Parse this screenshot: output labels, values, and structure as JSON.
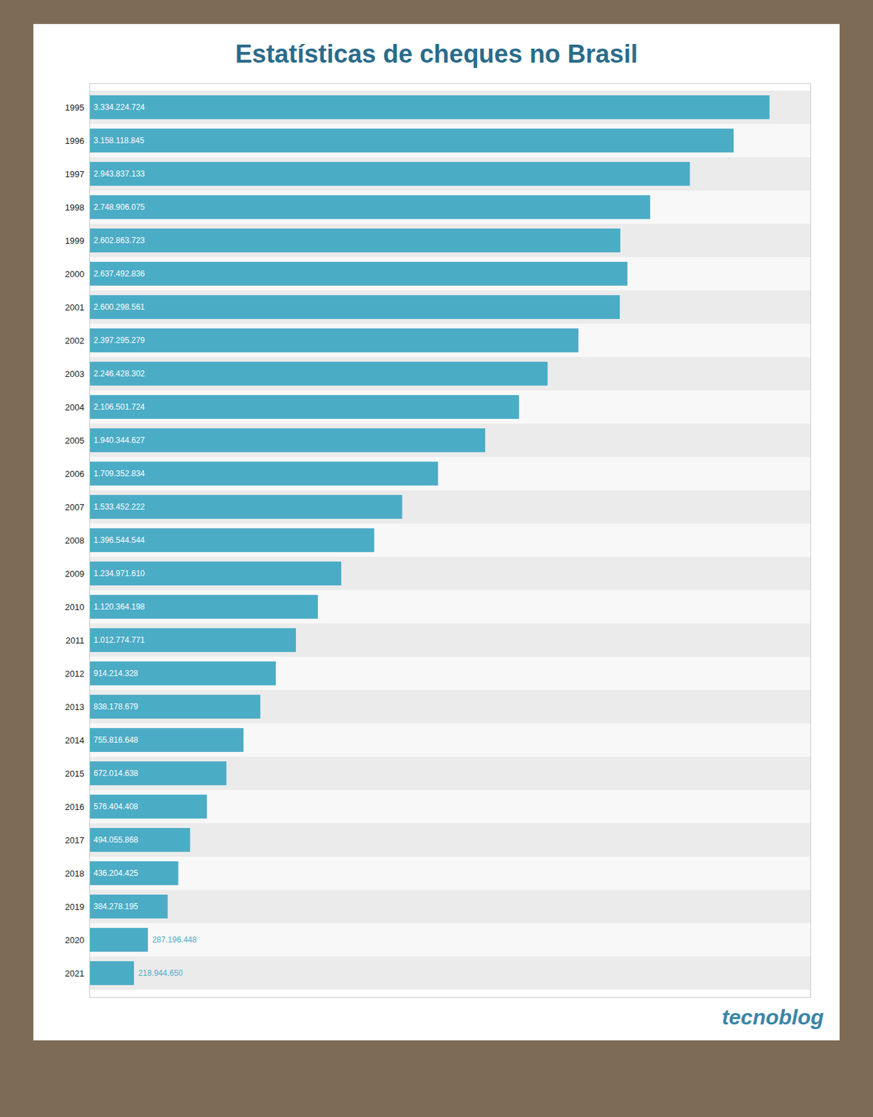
{
  "chart_data": {
    "type": "bar",
    "orientation": "horizontal",
    "title": "Estatísticas de cheques no Brasil",
    "categories": [
      "1995",
      "1996",
      "1997",
      "1998",
      "1999",
      "2000",
      "2001",
      "2002",
      "2003",
      "2004",
      "2005",
      "2006",
      "2007",
      "2008",
      "2009",
      "2010",
      "2011",
      "2012",
      "2013",
      "2014",
      "2015",
      "2016",
      "2017",
      "2018",
      "2019",
      "2020",
      "2021"
    ],
    "values": [
      3334224724,
      3158118845,
      2943837133,
      2748906075,
      2602863723,
      2637492836,
      2600298561,
      2397295279,
      2246428302,
      2106501724,
      1940344627,
      1709352834,
      1533452222,
      1396544544,
      1234971610,
      1120364198,
      1012774771,
      914214328,
      838178679,
      755816648,
      672014638,
      576404408,
      494055868,
      436204425,
      384278195,
      287196448,
      218944650
    ],
    "value_labels": [
      "3.334.224.724",
      "3.158.118.845",
      "2.943.837.133",
      "2.748.906.075",
      "2.602.863.723",
      "2.637.492.836",
      "2.600.298.561",
      "2.397.295.279",
      "2.246.428.302",
      "2.106.501.724",
      "1.940.344.627",
      "1.709.352.834",
      "1.533.452.222",
      "1.396.544.544",
      "1.234.971.610",
      "1.120.364.198",
      "1.012.774.771",
      "914.214.328",
      "838.178.679",
      "755.816.648",
      "672.014.638",
      "576.404.408",
      "494.055.868",
      "436.204.425",
      "384.278.195",
      "287.196.448",
      "218.944.650"
    ],
    "color": "#4bacc6",
    "xlim": [
      0,
      3534278207.44
    ],
    "data_labels": true,
    "tick_labels": "y",
    "grid": false,
    "annotations": [
      "tecnoblog"
    ]
  }
}
